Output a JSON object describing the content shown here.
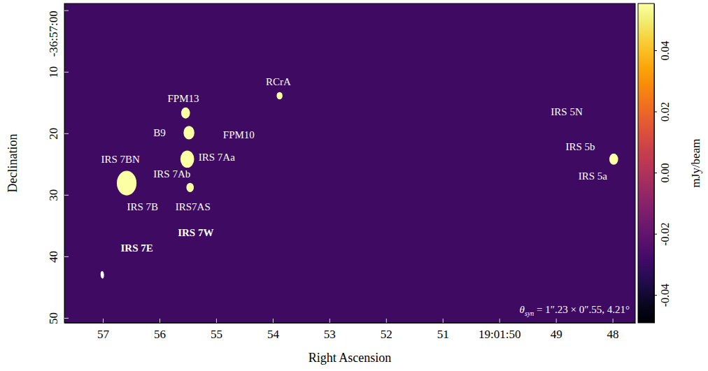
{
  "chart_data": {
    "type": "image",
    "x_label": "Right Ascension",
    "y_label": "Declination",
    "xlim": [
      57.68,
      47.6
    ],
    "xticks": [
      57,
      56,
      55,
      54,
      53,
      52,
      51,
      {
        "value": 50,
        "label": "19:01:50"
      },
      49,
      48
    ],
    "ylim": [
      -1.1,
      50.8
    ],
    "yticks": [
      {
        "value": 0,
        "label": "-36:57:00"
      },
      10,
      20,
      30,
      40,
      50
    ],
    "x": [
      53.88,
      55.54,
      55.48,
      55.51,
      55.46,
      56.58,
      47.98
    ],
    "y": [
      13.9,
      16.7,
      19.9,
      24.2,
      28.8,
      28.1,
      24.2
    ],
    "sizes": [
      1.2,
      1.8,
      2.2,
      2.8,
      1.5,
      4.0,
      1.8
    ],
    "color": "#fcffa4",
    "annotations": [
      {
        "text": "RCrA",
        "x": 53.9,
        "y": 11.6
      },
      {
        "text": "FPM13",
        "x": 55.58,
        "y": 14.4
      },
      {
        "text": "B9",
        "x": 56.0,
        "y": 19.9
      },
      {
        "text": "FPM10",
        "x": 54.6,
        "y": 20.2
      },
      {
        "text": "IRS 7Aa",
        "x": 54.99,
        "y": 23.9
      },
      {
        "text": "IRS 7BN",
        "x": 56.69,
        "y": 24.2
      },
      {
        "text": "IRS 7Ab",
        "x": 55.78,
        "y": 26.6
      },
      {
        "text": "IRS 7B",
        "x": 56.3,
        "y": 32.0
      },
      {
        "text": "IRS7AS",
        "x": 55.41,
        "y": 32.0
      },
      {
        "text": "IRS 5N",
        "x": 48.81,
        "y": 16.5
      },
      {
        "text": "IRS 5b",
        "x": 48.57,
        "y": 22.2
      },
      {
        "text": "IRS 5a",
        "x": 48.35,
        "y": 26.9
      }
    ],
    "region_labels": [
      {
        "text": "IRS 7W",
        "x": 55.36,
        "y": 36.1
      },
      {
        "text": "IRS 7E",
        "x": 56.4,
        "y": 38.6
      }
    ],
    "beam": {
      "x": 57.01,
      "y": 43.0,
      "major": 1.23,
      "minor": 0.55,
      "pa": 4.21
    },
    "beam_label": {
      "symbol": "θ",
      "subscript": "syn",
      "text": " = 1″.23 × 0″.55, 4.21°"
    },
    "colorbar": {
      "label": "mJy/beam",
      "range": [
        -0.0491,
        0.0553
      ],
      "ticks": [
        -0.04,
        -0.02,
        {
          "value": 0,
          "label": "0.00"
        },
        0.02,
        0.04
      ]
    }
  }
}
